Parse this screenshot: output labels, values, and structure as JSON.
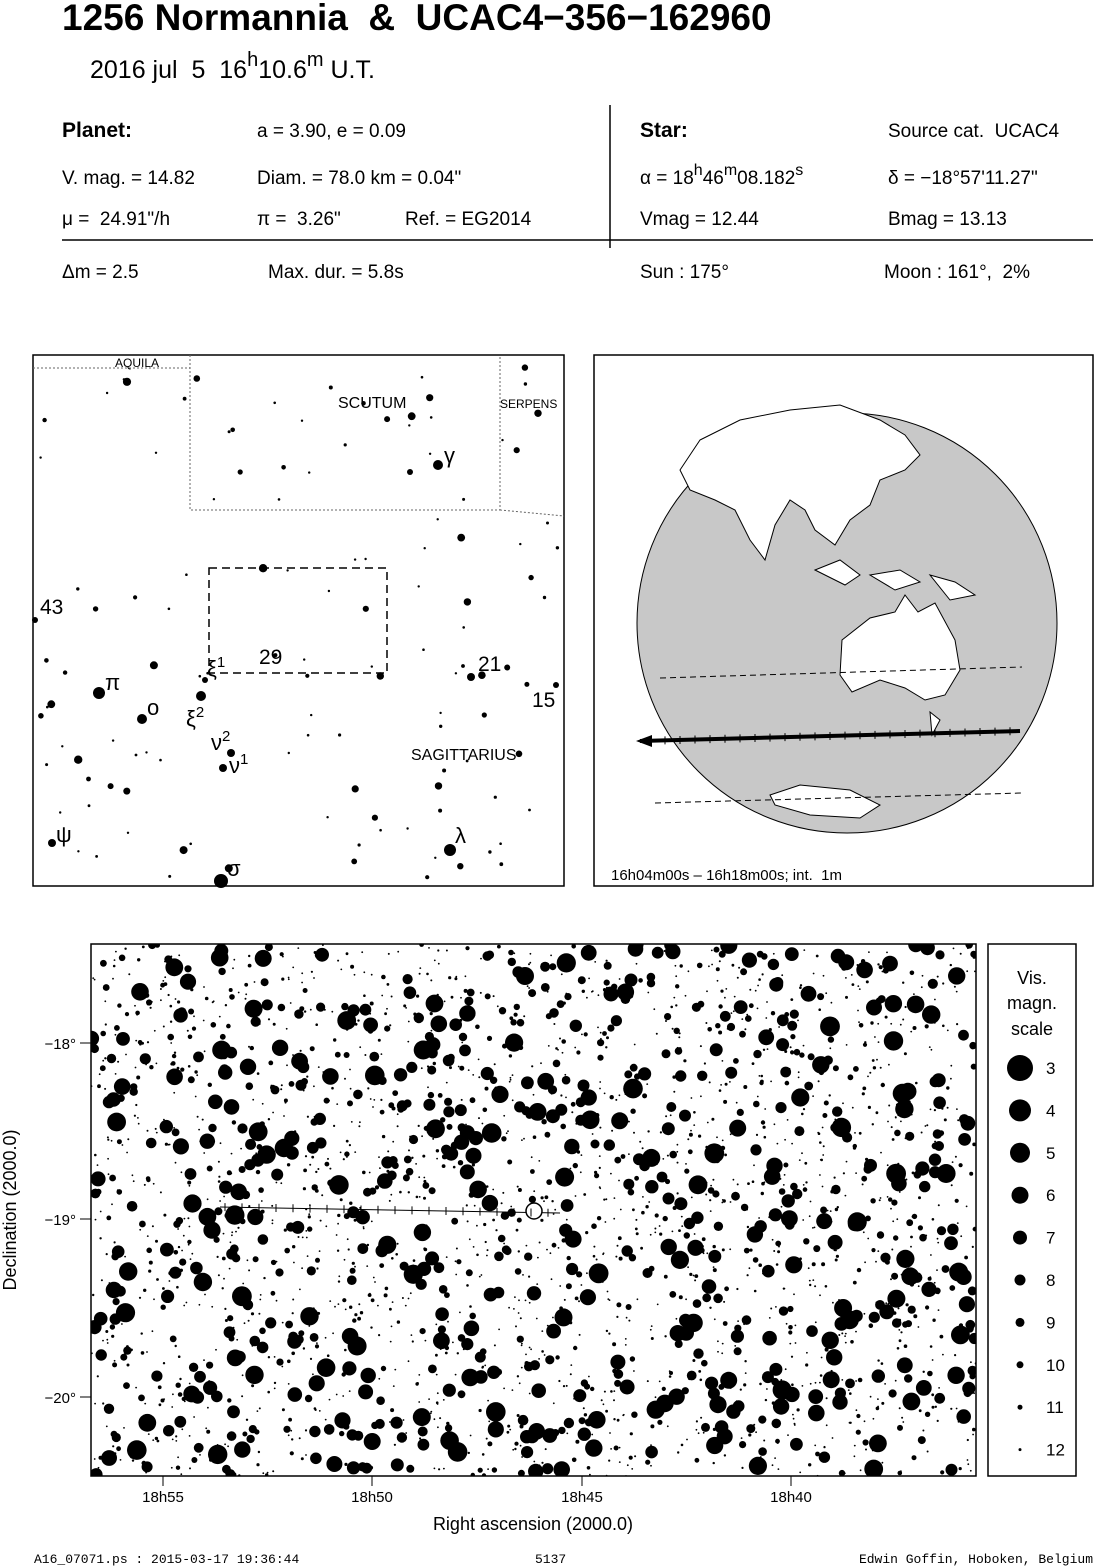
{
  "header": {
    "title": "1256 Normannia  &  UCAC4−356−162960",
    "date": {
      "pre": "2016 jul  5  16",
      "h": "h",
      "min": "10.6",
      "m": "m",
      "post": " U.T."
    }
  },
  "planet": {
    "label": "Planet:",
    "orbit": "a = 3.90, e = 0.09",
    "vmag": "V. mag. = 14.82",
    "diam": "Diam. = 78.0 km = 0.04\"",
    "mu": "μ =  24.91\"/h",
    "pi": "π =  3.26\"",
    "ref": "Ref. = EG2014"
  },
  "star": {
    "label": "Star:",
    "source": "Source cat.  UCAC4",
    "alpha": {
      "pre": "α = 18",
      "h": "h",
      "min": "46",
      "m": "m",
      "sec": "08.182",
      "s": "s"
    },
    "delta": "δ = −18°57'11.27\"",
    "vmag": "Vmag = 12.44",
    "bmag": "Bmag = 13.13"
  },
  "event": {
    "dm": "Δm = 2.5",
    "maxdur": "Max. dur. = 5.8s",
    "sun": "Sun : 175°",
    "moon": "Moon : 161°,  2%"
  },
  "finder": {
    "constellations": [
      "AQUILA",
      "SCUTUM",
      "SERPENS",
      "SAGITTARIUS"
    ],
    "stars": [
      {
        "text": "43"
      },
      {
        "text": "29"
      },
      {
        "text": "21"
      },
      {
        "text": "15"
      },
      {
        "text": "γ"
      },
      {
        "text": "π"
      },
      {
        "text": "ο"
      },
      {
        "text": "ξ",
        "sup": "1"
      },
      {
        "text": "ξ",
        "sup": "2"
      },
      {
        "text": "ν",
        "sup": "2"
      },
      {
        "text": "ν",
        "sup": "1"
      },
      {
        "text": "ψ"
      },
      {
        "text": "λ"
      },
      {
        "text": "σ"
      }
    ]
  },
  "globe": {
    "caption": "16h04m00s – 16h18m00s; int.  1m"
  },
  "starchart": {
    "yticks": [
      "−18°",
      "−19°",
      "−20°"
    ],
    "xticks": [
      "18h55",
      "18h50",
      "18h45",
      "18h40"
    ],
    "xlabel": "Right ascension (2000.0)",
    "ylabel": "Declination (2000.0)",
    "legend": {
      "title": [
        "Vis.",
        "magn.",
        "scale"
      ],
      "magnitudes": [
        "3",
        "4",
        "5",
        "6",
        "7",
        "8",
        "9",
        "10",
        "11",
        "12"
      ]
    }
  },
  "footer": {
    "file": "A16_07071.ps : 2015-03-17 19:36:44",
    "number": "5137",
    "author": "Edwin Goffin, Hoboken, Belgium"
  }
}
